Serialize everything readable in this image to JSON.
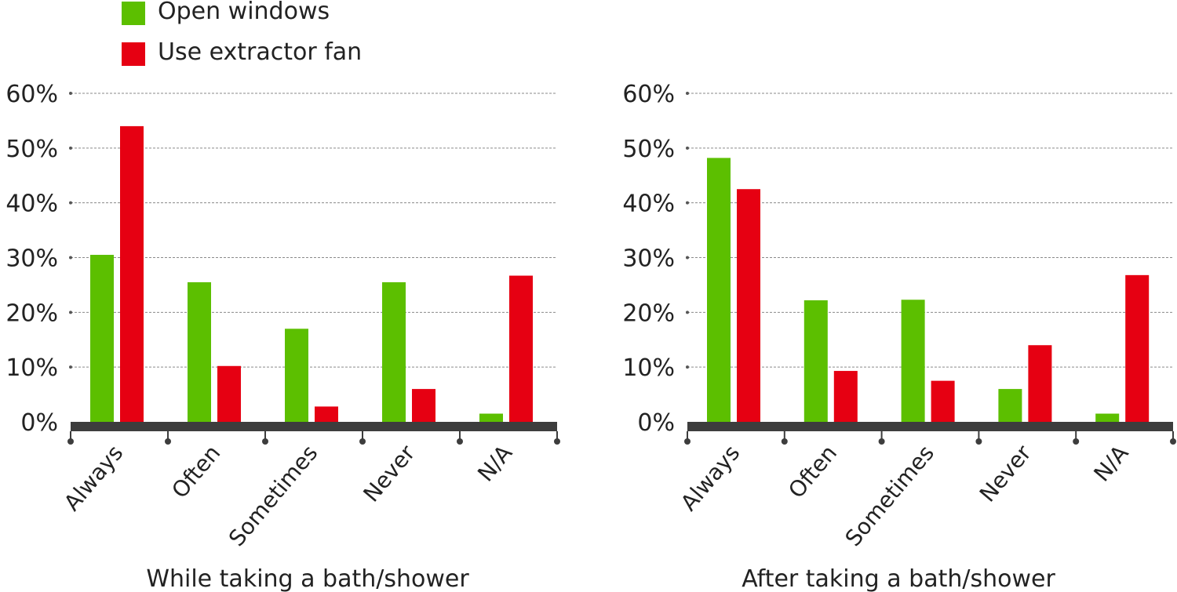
{
  "legend": {
    "items": [
      {
        "label": "Open windows",
        "color": "#5cbf00"
      },
      {
        "label": "Use extractor fan",
        "color": "#e60012"
      }
    ]
  },
  "chart_data": [
    {
      "type": "bar",
      "title": "While taking a bath/shower",
      "categories": [
        "Always",
        "Often",
        "Sometimes",
        "Never",
        "N/A"
      ],
      "series": [
        {
          "name": "Open windows",
          "values": [
            30.5,
            25.5,
            17,
            25.5,
            1.5
          ]
        },
        {
          "name": "Use extractor fan",
          "values": [
            54,
            10.2,
            2.8,
            6,
            26.7
          ]
        }
      ],
      "ylim": [
        0,
        60
      ],
      "yticks": [
        "0%",
        "10%",
        "20%",
        "30%",
        "40%",
        "50%",
        "60%"
      ],
      "grid": true,
      "legend": "top-left"
    },
    {
      "type": "bar",
      "title": "After taking a bath/shower",
      "categories": [
        "Always",
        "Often",
        "Sometimes",
        "Never",
        "N/A"
      ],
      "series": [
        {
          "name": "Open windows",
          "values": [
            48.2,
            22.2,
            22.3,
            6,
            1.5
          ]
        },
        {
          "name": "Use extractor fan",
          "values": [
            42.5,
            9.3,
            7.5,
            14,
            26.8
          ]
        }
      ],
      "ylim": [
        0,
        60
      ],
      "yticks": [
        "0%",
        "10%",
        "20%",
        "30%",
        "40%",
        "50%",
        "60%"
      ],
      "grid": true,
      "legend": "top-left"
    }
  ]
}
